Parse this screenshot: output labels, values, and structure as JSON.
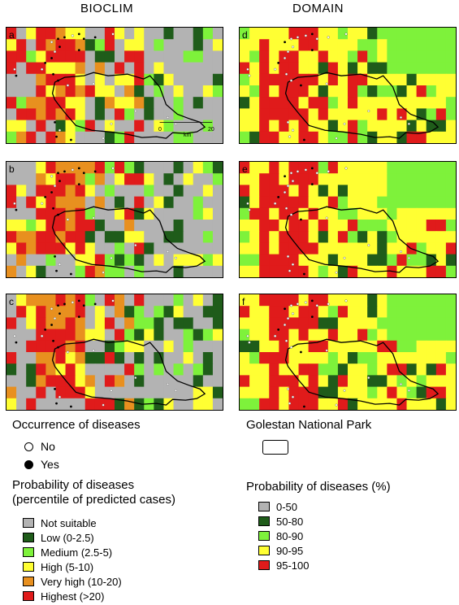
{
  "columns": {
    "left_title": "BIOCLIM",
    "right_title": "DOMAIN"
  },
  "panels": [
    {
      "letter": "a",
      "model": "bioclim"
    },
    {
      "letter": "b",
      "model": "bioclim"
    },
    {
      "letter": "c",
      "model": "bioclim"
    },
    {
      "letter": "d",
      "model": "domain"
    },
    {
      "letter": "e",
      "model": "domain"
    },
    {
      "letter": "f",
      "model": "domain"
    }
  ],
  "scale_bar": {
    "zero": "0",
    "max": "20",
    "unit": "km"
  },
  "occurrence": {
    "title": "Occurrence of diseases",
    "no_label": "No",
    "yes_label": "Yes"
  },
  "park_legend": {
    "title": "Golestan National Park"
  },
  "bioclim_legend": {
    "title_line1": "Probability of diseases",
    "title_line2": "(percentile of predicted cases)",
    "items": [
      {
        "label": "Not suitable",
        "color": "#b3b3b3"
      },
      {
        "label": "Low (0-2.5)",
        "color": "#1f5c1a"
      },
      {
        "label": "Medium (2.5-5)",
        "color": "#7ef23b"
      },
      {
        "label": "High (5-10)",
        "color": "#ffff33"
      },
      {
        "label": "Very high (10-20)",
        "color": "#e8901f"
      },
      {
        "label": "Highest (>20)",
        "color": "#e01b1b"
      }
    ]
  },
  "domain_legend": {
    "title": "Probability of diseases (%)",
    "items": [
      {
        "label": "0-50",
        "color": "#b3b3b3"
      },
      {
        "label": "50-80",
        "color": "#1f5c1a"
      },
      {
        "label": "80-90",
        "color": "#7ef23b"
      },
      {
        "label": "90-95",
        "color": "#ffff33"
      },
      {
        "label": "95-100",
        "color": "#e01b1b"
      }
    ]
  }
}
